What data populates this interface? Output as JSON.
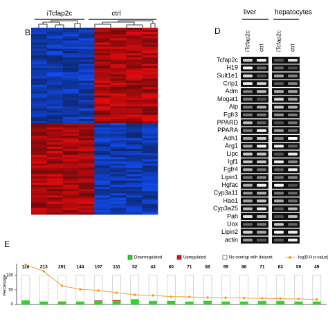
{
  "panel_b": {
    "label": "B",
    "groups": [
      "iTcfap2c",
      "ctrl"
    ]
  },
  "panel_d": {
    "label": "D",
    "tissues": [
      "liver",
      "hepatocytes"
    ],
    "lanes": [
      "iTcfap2c",
      "ctrl",
      "iTcfap2c",
      "ctrl"
    ],
    "genes": [
      "Tcfap2c",
      "H19",
      "Sult1e1",
      "Crip1",
      "Adm",
      "Mogat1",
      "Alp",
      "Fgfr3",
      "PPARD",
      "PPARA",
      "Adh1",
      "Arg1",
      "Lipc",
      "Igf1",
      "Fgfr4",
      "Lipin1",
      "Hgfac",
      "Cyp3a11",
      "Hao1",
      "Cyp3a25",
      "Pah",
      "Uox",
      "Lipin2",
      "actin"
    ]
  },
  "chart_data": {
    "type": "bar",
    "panel_label": "E",
    "ylabel": "Percentage",
    "categories": [
      null,
      null,
      null,
      null,
      null,
      null,
      null,
      null,
      null,
      null,
      null,
      null,
      null,
      null,
      null,
      null,
      null
    ],
    "top_labels": [
      126,
      213,
      291,
      144,
      107,
      131,
      52,
      43,
      60,
      71,
      88,
      99,
      88,
      71,
      63,
      59,
      49
    ],
    "ylim": [
      0,
      140
    ],
    "yticks": [
      0,
      50,
      100
    ],
    "series": [
      {
        "name": "Downregulated",
        "color": "#22dd22",
        "values": [
          14,
          10,
          8,
          10,
          12,
          12,
          18,
          12,
          10,
          10,
          10,
          10,
          10,
          12,
          12,
          10,
          10
        ]
      },
      {
        "name": "Upregulated",
        "color": "#dd1111",
        "values": [
          0,
          0,
          2,
          0,
          2,
          3,
          0,
          0,
          2,
          0,
          2,
          0,
          0,
          0,
          0,
          0,
          0
        ]
      },
      {
        "name": "No overlap with dataset",
        "color": "#ffffff",
        "values": [
          86,
          90,
          90,
          90,
          86,
          85,
          82,
          88,
          88,
          90,
          88,
          90,
          90,
          88,
          88,
          90,
          90
        ]
      },
      {
        "name": "-log(B-H p-value)",
        "color": "#f0a030",
        "kind": "line",
        "values": [
          136,
          114,
          64,
          52,
          48,
          40,
          33,
          31,
          27,
          26,
          24,
          23,
          22,
          21,
          20,
          19,
          17
        ]
      }
    ]
  }
}
